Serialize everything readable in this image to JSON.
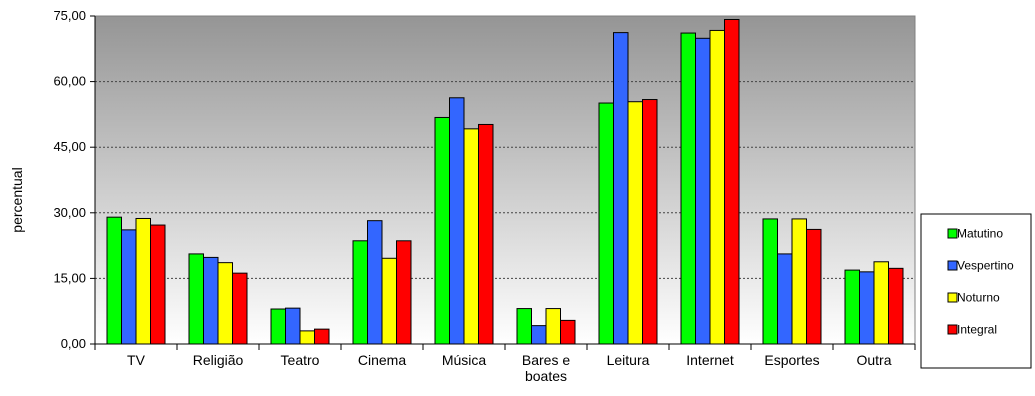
{
  "chart_data": {
    "type": "bar",
    "title": "",
    "xlabel": "",
    "ylabel": "percentual",
    "ylim": [
      0,
      75
    ],
    "yticks": [
      0,
      15,
      30,
      45,
      60,
      75
    ],
    "ytick_labels": [
      "0,00",
      "15,00",
      "30,00",
      "45,00",
      "60,00",
      "75,00"
    ],
    "grid": "horizontal dashed",
    "legend_position": "right",
    "categories": [
      [
        "TV"
      ],
      [
        "Religião"
      ],
      [
        "Teatro"
      ],
      [
        "Cinema"
      ],
      [
        "Música"
      ],
      [
        "Bares e",
        "boates"
      ],
      [
        "Leitura"
      ],
      [
        "Internet"
      ],
      [
        "Esportes"
      ],
      [
        "Outra"
      ]
    ],
    "series": [
      {
        "name": "Matutino",
        "color": "#00ff00",
        "values": [
          29.0,
          20.6,
          8.0,
          23.6,
          51.8,
          8.1,
          55.1,
          71.1,
          28.6,
          16.9
        ]
      },
      {
        "name": "Vespertino",
        "color": "#3366ff",
        "values": [
          26.1,
          19.8,
          8.2,
          28.2,
          56.3,
          4.2,
          71.2,
          69.9,
          20.6,
          16.5
        ]
      },
      {
        "name": "Noturno",
        "color": "#ffff00",
        "values": [
          28.7,
          18.6,
          3.0,
          19.6,
          49.2,
          8.1,
          55.4,
          71.7,
          28.6,
          18.8
        ]
      },
      {
        "name": "Integral",
        "color": "#ff0000",
        "values": [
          27.2,
          16.2,
          3.4,
          23.6,
          50.2,
          5.4,
          55.9,
          74.2,
          26.2,
          17.3
        ]
      }
    ]
  }
}
